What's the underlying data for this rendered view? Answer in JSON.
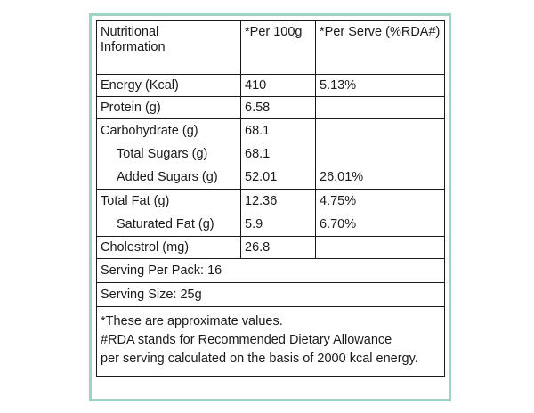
{
  "header": {
    "col1": [
      "Nutritional",
      "Information"
    ],
    "col2": "*Per 100g",
    "col3": "*Per Serve (%RDA#)"
  },
  "rows": {
    "energy": {
      "label": "Energy (Kcal)",
      "per100": "410",
      "serve": "5.13%"
    },
    "protein": {
      "label": "Protein (g)",
      "per100": "6.58",
      "serve": ""
    },
    "carbs": {
      "label": "Carbohydrate (g)",
      "per100": "68.1",
      "serve": "",
      "total_sugars": {
        "label": "Total Sugars (g)",
        "per100": "68.1",
        "serve": ""
      },
      "added_sugars": {
        "label": "Added Sugars (g)",
        "per100": "52.01",
        "serve": "26.01%"
      }
    },
    "fat": {
      "label": "Total Fat (g)",
      "per100": "12.36",
      "serve": "4.75%",
      "saturated": {
        "label": "Saturated Fat (g)",
        "per100": "5.9",
        "serve": "6.70%"
      }
    },
    "cholesterol": {
      "label": "Cholestrol (mg)",
      "per100": "26.8",
      "serve": ""
    }
  },
  "serving_per_pack": "Serving Per Pack: 16",
  "serving_size": "Serving Size: 25g",
  "notes": [
    "*These are approximate values.",
    "#RDA stands for Recommended Dietary Allowance",
    "per serving calculated on the basis of 2000 kcal energy."
  ]
}
